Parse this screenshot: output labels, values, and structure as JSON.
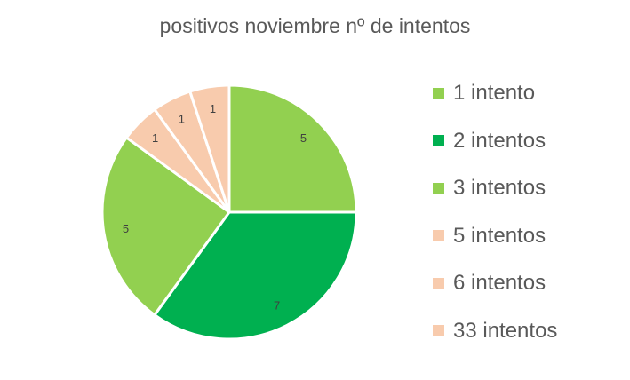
{
  "chart_data": {
    "type": "pie",
    "title": "positivos noviembre nº de intentos",
    "legend_position": "right",
    "start_angle_deg": 0,
    "direction": "clockwise",
    "slices": [
      {
        "label": "1 intento",
        "value": 5,
        "color": "#92D050"
      },
      {
        "label": "2 intentos",
        "value": 7,
        "color": "#00B050"
      },
      {
        "label": "3 intentos",
        "value": 5,
        "color": "#92D050"
      },
      {
        "label": "5 intentos",
        "value": 1,
        "color": "#F8CBAD"
      },
      {
        "label": "6 intentos",
        "value": 1,
        "color": "#F8CBAD"
      },
      {
        "label": "33 intentos",
        "value": 1,
        "color": "#F8CBAD"
      }
    ]
  }
}
